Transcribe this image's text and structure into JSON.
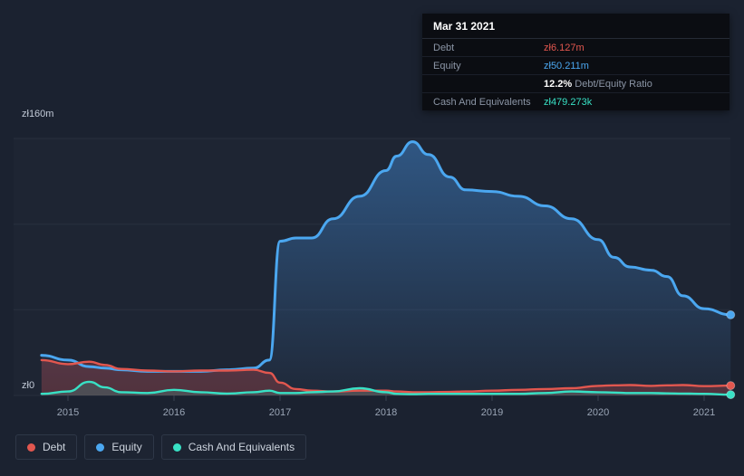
{
  "colors": {
    "background": "#1b2230",
    "debt": "#e2574f",
    "equity": "#4ba7f0",
    "cash": "#38e1c5"
  },
  "tooltip": {
    "date": "Mar 31 2021",
    "debt_label": "Debt",
    "debt_value": "zł6.127m",
    "equity_label": "Equity",
    "equity_value": "zł50.211m",
    "ratio_value": "12.2%",
    "ratio_label": "Debt/Equity Ratio",
    "cash_label": "Cash And Equivalents",
    "cash_value": "zł479.273k"
  },
  "axis": {
    "y_top": "zł160m",
    "y_zero": "zł0"
  },
  "legend": {
    "items": [
      {
        "key": "debt",
        "label": "Debt"
      },
      {
        "key": "equity",
        "label": "Equity"
      },
      {
        "key": "cash",
        "label": "Cash And Equivalents"
      }
    ]
  },
  "chart_data": {
    "type": "area",
    "currency": "zł",
    "unit": "millions",
    "ylim": [
      0,
      160
    ],
    "xlim": [
      2014.75,
      2021.25
    ],
    "y_gridlines": [
      0,
      53.33,
      106.67,
      160
    ],
    "x_ticks": [
      2015,
      2016,
      2017,
      2018,
      2019,
      2020,
      2021
    ],
    "x_tick_labels": [
      "2015",
      "2016",
      "2017",
      "2018",
      "2019",
      "2020",
      "2021"
    ],
    "legend_position": "bottom-left",
    "x": [
      2014.75,
      2015.0,
      2015.2,
      2015.35,
      2015.5,
      2015.75,
      2016.0,
      2016.25,
      2016.5,
      2016.75,
      2016.9,
      2017.0,
      2017.15,
      2017.3,
      2017.5,
      2017.75,
      2018.0,
      2018.1,
      2018.25,
      2018.4,
      2018.6,
      2018.75,
      2019.0,
      2019.25,
      2019.5,
      2019.75,
      2020.0,
      2020.15,
      2020.3,
      2020.5,
      2020.65,
      2020.8,
      2021.0,
      2021.25
    ],
    "series": [
      {
        "name": "Equity",
        "key": "equity",
        "values": [
          25,
          22,
          18,
          17,
          16,
          15,
          15,
          15,
          16,
          17,
          22,
          96,
          98,
          98,
          110,
          124,
          140,
          149,
          158,
          150,
          136,
          128,
          127,
          124,
          118,
          110,
          97,
          86,
          80,
          78,
          74,
          62,
          54,
          50.211
        ]
      },
      {
        "name": "Debt",
        "key": "debt",
        "values": [
          22,
          19.5,
          21,
          19,
          16.5,
          15.5,
          15,
          15.5,
          15.5,
          16,
          14,
          8,
          4,
          3,
          2.5,
          3,
          3,
          2.5,
          2,
          2,
          2.2,
          2.5,
          3,
          3.5,
          4,
          4.5,
          6,
          6.3,
          6.5,
          6,
          6.3,
          6.5,
          5.8,
          6.127
        ]
      },
      {
        "name": "Cash And Equivalents",
        "key": "cash",
        "values": [
          1,
          2.5,
          8.5,
          5,
          2,
          1.5,
          3.5,
          2,
          1.2,
          2,
          3,
          1.5,
          1.5,
          2,
          2.5,
          4.5,
          2,
          1,
          0.8,
          1,
          1,
          1,
          1,
          1,
          1.5,
          2.5,
          2,
          1.8,
          1.5,
          1.5,
          1.3,
          1.2,
          1,
          0.479
        ]
      }
    ]
  }
}
